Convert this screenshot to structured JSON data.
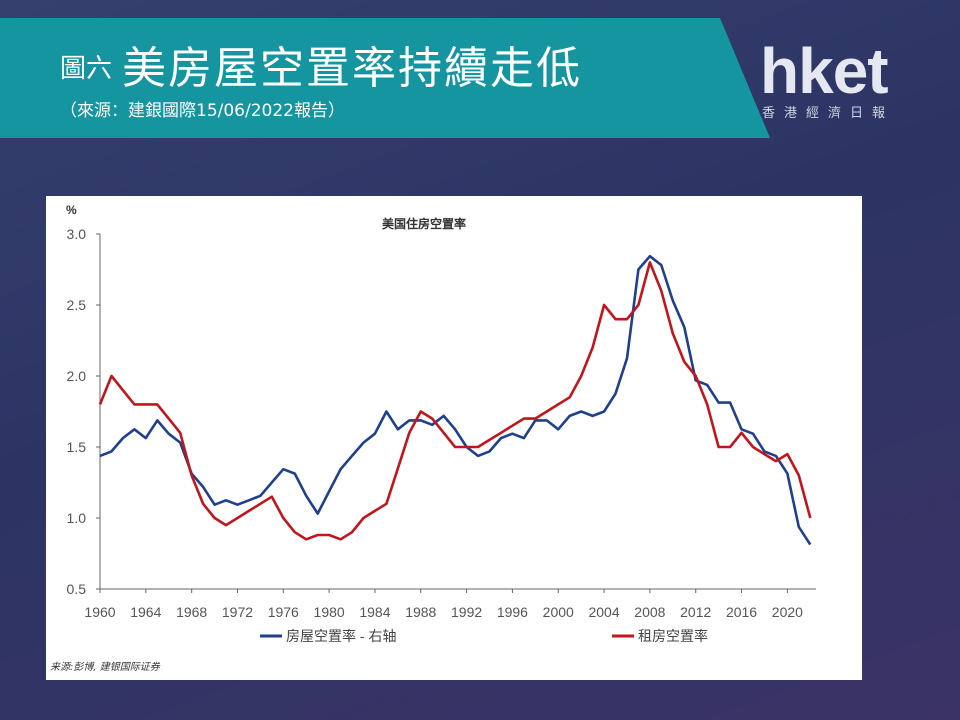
{
  "header": {
    "prefix": "圖六",
    "title": "美房屋空置率持續走低",
    "subtitle": "（來源：建銀國際15/06/2022報告）"
  },
  "logo": {
    "text": "hket",
    "subtitle": "香港經濟日報"
  },
  "chart_data": {
    "type": "line",
    "title": "美国住房空置率",
    "left_axis_label": "%",
    "right_axis_label": "%",
    "left_ylim": [
      0.5,
      3.0
    ],
    "right_ylim": [
      4.0,
      12.0
    ],
    "left_ticks": [
      "0.5",
      "1.0",
      "1.5",
      "2.0",
      "2.5",
      "3.0"
    ],
    "right_ticks": [
      "4.0",
      "5.0",
      "6.0",
      "7.0",
      "8.0",
      "9.0",
      "10.0",
      "11.0",
      "12.0"
    ],
    "x_ticks": [
      "1960",
      "1964",
      "1968",
      "1972",
      "1976",
      "1980",
      "1984",
      "1988",
      "1992",
      "1996",
      "2000",
      "2004",
      "2008",
      "2012",
      "2016",
      "2020"
    ],
    "xlim": [
      1960,
      2022.5
    ],
    "grid": false,
    "legend_position": "bottom",
    "series": [
      {
        "name": "房屋空置率 - 右轴",
        "axis": "right",
        "color": "#1f3f8f",
        "points": [
          [
            1960,
            7.0
          ],
          [
            1961,
            7.1
          ],
          [
            1962,
            7.4
          ],
          [
            1963,
            7.6
          ],
          [
            1964,
            7.4
          ],
          [
            1965,
            7.8
          ],
          [
            1966,
            7.5
          ],
          [
            1967,
            7.3
          ],
          [
            1968,
            6.6
          ],
          [
            1969,
            6.3
          ],
          [
            1970,
            5.9
          ],
          [
            1971,
            6.0
          ],
          [
            1972,
            5.9
          ],
          [
            1973,
            6.0
          ],
          [
            1974,
            6.1
          ],
          [
            1975,
            6.4
          ],
          [
            1976,
            6.7
          ],
          [
            1977,
            6.6
          ],
          [
            1978,
            6.1
          ],
          [
            1979,
            5.7
          ],
          [
            1980,
            6.2
          ],
          [
            1981,
            6.7
          ],
          [
            1982,
            7.0
          ],
          [
            1983,
            7.3
          ],
          [
            1984,
            7.5
          ],
          [
            1985,
            8.0
          ],
          [
            1986,
            7.6
          ],
          [
            1987,
            7.8
          ],
          [
            1988,
            7.8
          ],
          [
            1989,
            7.7
          ],
          [
            1990,
            7.9
          ],
          [
            1991,
            7.6
          ],
          [
            1992,
            7.2
          ],
          [
            1993,
            7.0
          ],
          [
            1994,
            7.1
          ],
          [
            1995,
            7.4
          ],
          [
            1996,
            7.5
          ],
          [
            1997,
            7.4
          ],
          [
            1998,
            7.8
          ],
          [
            1999,
            7.8
          ],
          [
            2000,
            7.6
          ],
          [
            2001,
            7.9
          ],
          [
            2002,
            8.0
          ],
          [
            2003,
            7.9
          ],
          [
            2004,
            8.0
          ],
          [
            2005,
            8.4
          ],
          [
            2006,
            9.2
          ],
          [
            2007,
            11.2
          ],
          [
            2008,
            11.5
          ],
          [
            2009,
            11.3
          ],
          [
            2010,
            10.5
          ],
          [
            2011,
            9.9
          ],
          [
            2012,
            8.7
          ],
          [
            2013,
            8.6
          ],
          [
            2014,
            8.2
          ],
          [
            2015,
            8.2
          ],
          [
            2016,
            7.6
          ],
          [
            2017,
            7.5
          ],
          [
            2018,
            7.1
          ],
          [
            2019,
            7.0
          ],
          [
            2020,
            6.6
          ],
          [
            2021,
            5.4
          ],
          [
            2022,
            5.0
          ]
        ]
      },
      {
        "name": "租房空置率",
        "axis": "left",
        "color": "#c0161c",
        "points": [
          [
            1960,
            1.8
          ],
          [
            1961,
            2.0
          ],
          [
            1962,
            1.9
          ],
          [
            1963,
            1.8
          ],
          [
            1964,
            1.8
          ],
          [
            1965,
            1.8
          ],
          [
            1966,
            1.7
          ],
          [
            1967,
            1.6
          ],
          [
            1968,
            1.3
          ],
          [
            1969,
            1.1
          ],
          [
            1970,
            1.0
          ],
          [
            1971,
            0.95
          ],
          [
            1972,
            1.0
          ],
          [
            1973,
            1.05
          ],
          [
            1974,
            1.1
          ],
          [
            1975,
            1.15
          ],
          [
            1976,
            1.0
          ],
          [
            1977,
            0.9
          ],
          [
            1978,
            0.85
          ],
          [
            1979,
            0.88
          ],
          [
            1980,
            0.88
          ],
          [
            1981,
            0.85
          ],
          [
            1982,
            0.9
          ],
          [
            1983,
            1.0
          ],
          [
            1984,
            1.05
          ],
          [
            1985,
            1.1
          ],
          [
            1986,
            1.35
          ],
          [
            1987,
            1.6
          ],
          [
            1988,
            1.75
          ],
          [
            1989,
            1.7
          ],
          [
            1990,
            1.6
          ],
          [
            1991,
            1.5
          ],
          [
            1992,
            1.5
          ],
          [
            1993,
            1.5
          ],
          [
            1994,
            1.55
          ],
          [
            1995,
            1.6
          ],
          [
            1996,
            1.65
          ],
          [
            1997,
            1.7
          ],
          [
            1998,
            1.7
          ],
          [
            1999,
            1.75
          ],
          [
            2000,
            1.8
          ],
          [
            2001,
            1.85
          ],
          [
            2002,
            2.0
          ],
          [
            2003,
            2.2
          ],
          [
            2004,
            2.5
          ],
          [
            2005,
            2.4
          ],
          [
            2006,
            2.4
          ],
          [
            2007,
            2.5
          ],
          [
            2008,
            2.8
          ],
          [
            2009,
            2.6
          ],
          [
            2010,
            2.3
          ],
          [
            2011,
            2.1
          ],
          [
            2012,
            2.0
          ],
          [
            2013,
            1.8
          ],
          [
            2014,
            1.5
          ],
          [
            2015,
            1.5
          ],
          [
            2016,
            1.6
          ],
          [
            2017,
            1.5
          ],
          [
            2018,
            1.45
          ],
          [
            2019,
            1.4
          ],
          [
            2020,
            1.45
          ],
          [
            2021,
            1.3
          ],
          [
            2022,
            1.0
          ]
        ]
      }
    ],
    "source": "来源:彭博, 建银国际证券"
  }
}
